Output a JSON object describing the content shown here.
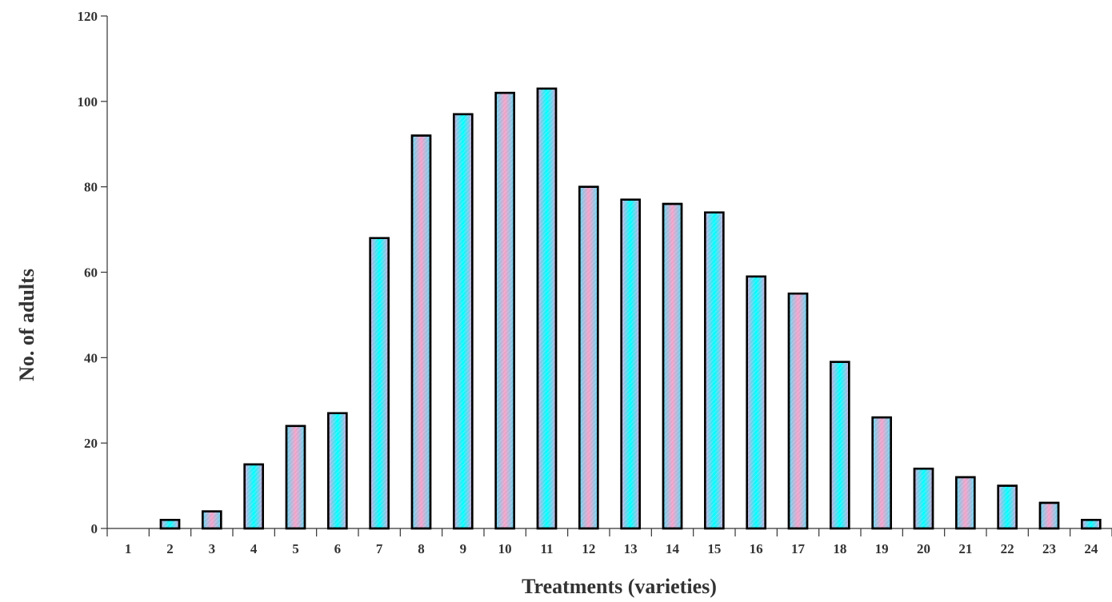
{
  "chart_data": {
    "type": "bar",
    "title": "",
    "xlabel": "Treatments (varieties)",
    "ylabel": "No. of adults",
    "categories": [
      "1",
      "2",
      "3",
      "4",
      "5",
      "6",
      "7",
      "8",
      "9",
      "10",
      "11",
      "12",
      "13",
      "14",
      "15",
      "16",
      "17",
      "18",
      "19",
      "20",
      "21",
      "22",
      "23",
      "24"
    ],
    "values": [
      0,
      2,
      4,
      15,
      24,
      27,
      68,
      92,
      97,
      102,
      103,
      80,
      77,
      76,
      74,
      59,
      55,
      39,
      26,
      14,
      12,
      10,
      6,
      2
    ],
    "ylim": [
      0,
      120
    ],
    "yticks": [
      0,
      20,
      40,
      60,
      80,
      100,
      120
    ],
    "grid": false,
    "legend": "none",
    "colors": {
      "pink": "#f5a0c8",
      "cyan": "#00ffff",
      "outline": "#000000",
      "axis": "#333333"
    }
  }
}
